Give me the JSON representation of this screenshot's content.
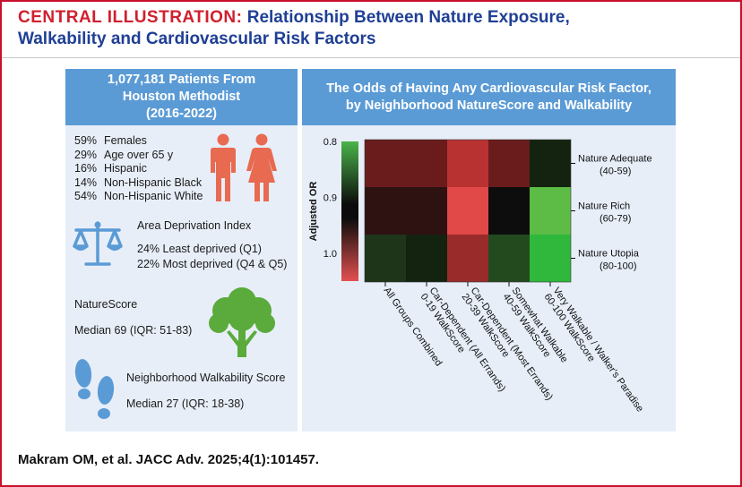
{
  "header": {
    "keyword": "CENTRAL ILLUSTRATION:",
    "title_line1": "Relationship Between Nature Exposure,",
    "title_line2": "Walkability and Cardiovascular Risk Factors"
  },
  "left_panel": {
    "title_line1": "1,077,181 Patients From",
    "title_line2": "Houston Methodist",
    "title_line3": "(2016-2022)",
    "demographics": [
      {
        "pct": "59%",
        "label": "Females"
      },
      {
        "pct": "29%",
        "label": "Age over 65 y"
      },
      {
        "pct": "16%",
        "label": "Hispanic"
      },
      {
        "pct": "14%",
        "label": "Non-Hispanic Black"
      },
      {
        "pct": "54%",
        "label": "Non-Hispanic White"
      }
    ],
    "adi": {
      "title": "Area Deprivation Index",
      "line1": "24% Least deprived (Q1)",
      "line2": "22% Most deprived (Q4 & Q5)"
    },
    "naturescore": {
      "title": "NatureScore",
      "median": "Median 69 (IQR: 51-83)"
    },
    "walkability": {
      "title": "Neighborhood Walkability Score",
      "median": "Median 27 (IQR: 18-38)"
    }
  },
  "right_panel": {
    "title_line1": "The Odds of Having Any Cardiovascular Risk Factor,",
    "title_line2": "by Neighborhood NatureScore and Walkability"
  },
  "chart_data": {
    "type": "heatmap",
    "colorbar": {
      "label": "Adjusted OR",
      "ticks": [
        "0.8",
        "0.9",
        "1.0"
      ],
      "range": [
        0.8,
        1.05
      ]
    },
    "rows": [
      {
        "name": "Nature Adequate",
        "range": "(40-59)"
      },
      {
        "name": "Nature Rich",
        "range": "(60-79)"
      },
      {
        "name": "Nature Utopia",
        "range": "(80-100)"
      }
    ],
    "columns": [
      {
        "line1": "All Groups Combined",
        "line2": ""
      },
      {
        "line1": "Car-Dependent (All Errands)",
        "line2": "0-19 WalkScore"
      },
      {
        "line1": "Car-Dependent (Most Errands)",
        "line2": "20-39 WalkScore"
      },
      {
        "line1": "Somewhat Walkable",
        "line2": "40-59 WalkScore"
      },
      {
        "line1": "Very Walkable / Walker's Paradise",
        "line2": "60-100 WalkScore"
      }
    ],
    "colors": [
      [
        "#6a1c1c",
        "#6a1c1c",
        "#b83232",
        "#6a1c1c",
        "#13230f"
      ],
      [
        "#2e1212",
        "#2e1212",
        "#e14848",
        "#0d0d0d",
        "#5cbc46"
      ],
      [
        "#1e351a",
        "#13230f",
        "#9a2b2b",
        "#234a1f",
        "#30b83c"
      ]
    ]
  },
  "citation": "Makram OM, et al. JACC Adv. 2025;4(1):101457."
}
